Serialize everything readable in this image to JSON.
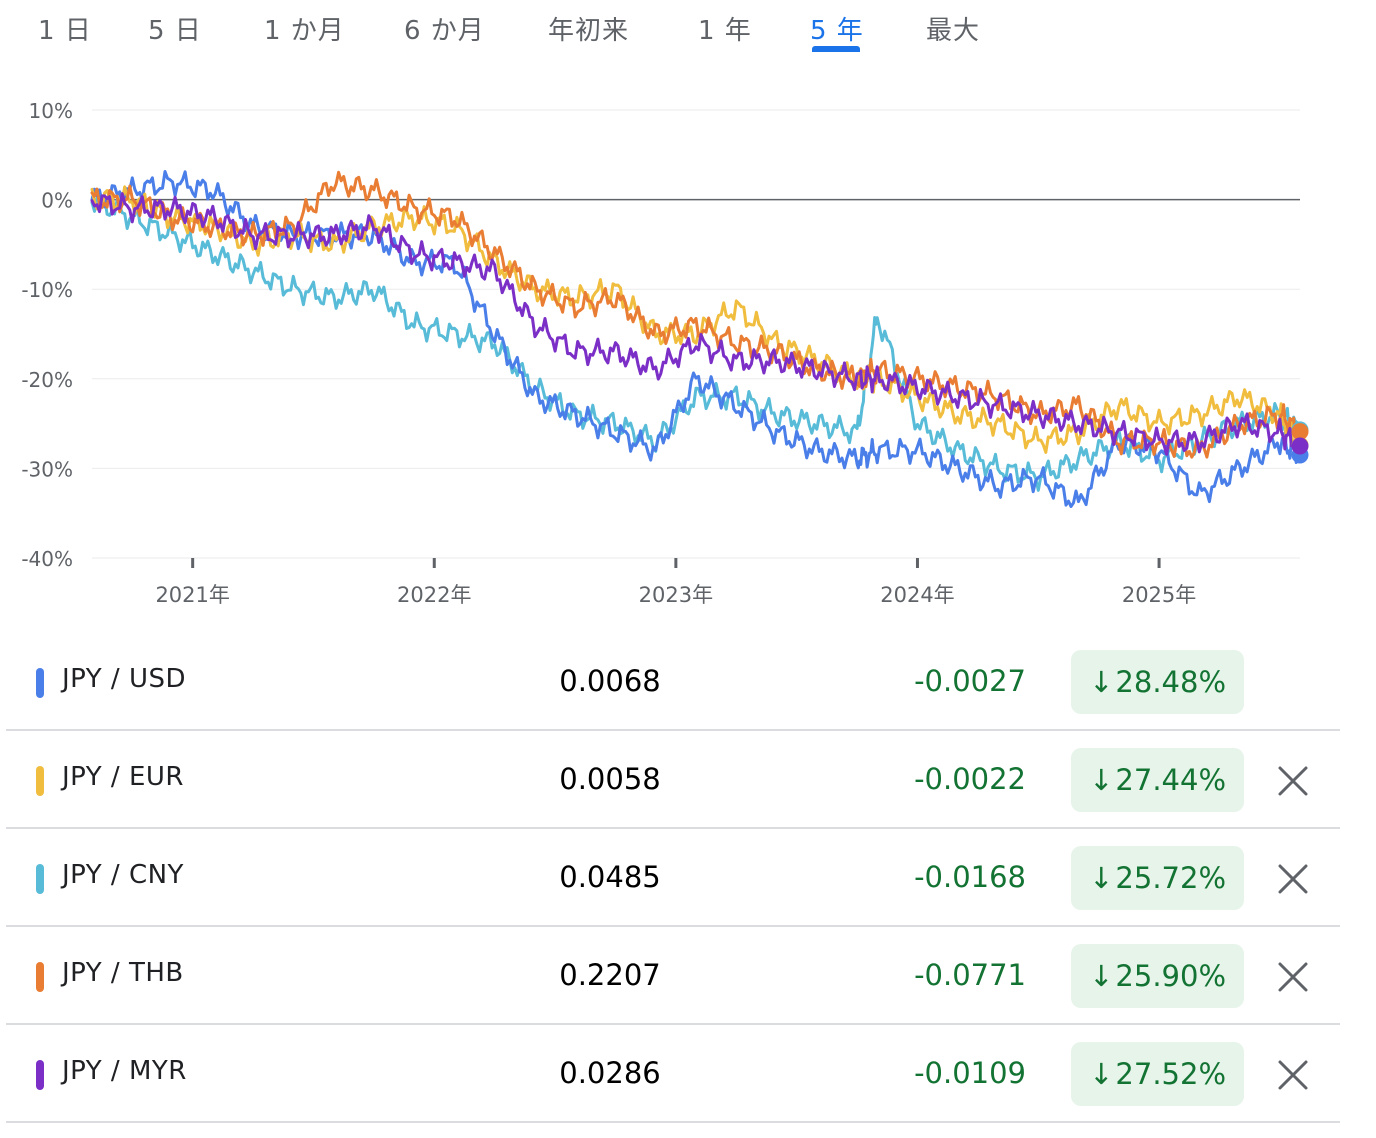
{
  "tabs": [
    {
      "label": "1 日",
      "active": false
    },
    {
      "label": "5 日",
      "active": false
    },
    {
      "label": "1 か月",
      "active": false
    },
    {
      "label": "6 か月",
      "active": false
    },
    {
      "label": "年初来",
      "active": false
    },
    {
      "label": "1 年",
      "active": false
    },
    {
      "label": "5 年",
      "active": true
    },
    {
      "label": "最大",
      "active": false
    }
  ],
  "colors": {
    "JPY / USD": "#4a7ee8",
    "JPY / EUR": "#f0bd3e",
    "JPY / CNY": "#58bcd8",
    "JPY / THB": "#e97d33",
    "JPY / MYR": "#7b2fc7",
    "positive_green": "#137333",
    "active_tab": "#1a73e8"
  },
  "rows": [
    {
      "pair": "JPY / USD",
      "price": "0.0068",
      "change": "-0.0027",
      "percent": "28.48%",
      "direction": "down",
      "removable": false
    },
    {
      "pair": "JPY / EUR",
      "price": "0.0058",
      "change": "-0.0022",
      "percent": "27.44%",
      "direction": "down",
      "removable": true
    },
    {
      "pair": "JPY / CNY",
      "price": "0.0485",
      "change": "-0.0168",
      "percent": "25.72%",
      "direction": "down",
      "removable": true
    },
    {
      "pair": "JPY / THB",
      "price": "0.2207",
      "change": "-0.0771",
      "percent": "25.90%",
      "direction": "down",
      "removable": true
    },
    {
      "pair": "JPY / MYR",
      "price": "0.0286",
      "change": "-0.0109",
      "percent": "27.52%",
      "direction": "down",
      "removable": true
    }
  ],
  "chart_data": {
    "type": "line",
    "title": "",
    "xlabel": "",
    "ylabel": "",
    "x_range": [
      "2020-08",
      "2025-08"
    ],
    "ylim": [
      -40,
      10
    ],
    "y_ticks": [
      "10%",
      "0%",
      "-10%",
      "-20%",
      "-30%",
      "-40%"
    ],
    "y_tick_values": [
      10,
      0,
      -10,
      -20,
      -30,
      -40
    ],
    "x_ticks": [
      "2021年",
      "2022年",
      "2023年",
      "2024年",
      "2025年"
    ],
    "baseline": 0,
    "grid": true,
    "legend": "table below chart",
    "x": [
      "2020-08",
      "2020-10",
      "2020-12",
      "2021-02",
      "2021-04",
      "2021-06",
      "2021-08",
      "2021-10",
      "2021-12",
      "2022-02",
      "2022-04",
      "2022-06",
      "2022-08",
      "2022-10",
      "2022-12",
      "2023-02",
      "2023-04",
      "2023-06",
      "2023-08",
      "2023-10",
      "2023-11",
      "2024-01",
      "2024-03",
      "2024-05",
      "2024-07",
      "2024-09",
      "2024-11",
      "2025-01",
      "2025-03",
      "2025-05",
      "2025-07",
      "2025-08"
    ],
    "series": [
      {
        "name": "JPY / USD",
        "values": [
          0,
          1,
          2,
          1,
          -3,
          -4,
          -4,
          -4,
          -7,
          -7,
          -15,
          -22,
          -24,
          -26,
          -28,
          -20,
          -23,
          -26,
          -28,
          -29,
          -28,
          -28,
          -30,
          -32,
          -31,
          -34,
          -27,
          -28,
          -33,
          -30,
          -27,
          -28.5
        ]
      },
      {
        "name": "JPY / EUR",
        "values": [
          0,
          0,
          -2,
          -3,
          -5,
          -4,
          -5,
          -3,
          -2,
          -3,
          -7,
          -10,
          -11,
          -10,
          -15,
          -15,
          -12,
          -16,
          -18,
          -20,
          -20,
          -22,
          -24,
          -25,
          -27,
          -26,
          -23,
          -25,
          -24,
          -22,
          -24,
          -27.4
        ]
      },
      {
        "name": "JPY / CNY",
        "values": [
          0,
          -2,
          -4,
          -6,
          -8,
          -10,
          -11,
          -10,
          -14,
          -15,
          -16,
          -21,
          -24,
          -25,
          -27,
          -22,
          -22,
          -24,
          -25,
          -26,
          -13,
          -25,
          -28,
          -30,
          -31,
          -29,
          -27,
          -29,
          -27,
          -25,
          -24,
          -25.7
        ]
      },
      {
        "name": "JPY / THB",
        "values": [
          0,
          0,
          -2,
          -3,
          -4,
          -3,
          2,
          1,
          -1,
          -2,
          -6,
          -10,
          -12,
          -11,
          -15,
          -14,
          -16,
          -17,
          -19,
          -20,
          -19,
          -20,
          -21,
          -22,
          -24,
          -23,
          -27,
          -27,
          -28,
          -25,
          -24,
          -25.9
        ]
      },
      {
        "name": "JPY / MYR",
        "values": [
          0,
          -1,
          -1,
          -2,
          -4,
          -4,
          -4,
          -3,
          -6,
          -7,
          -8,
          -14,
          -17,
          -17,
          -19,
          -16,
          -18,
          -18,
          -19,
          -20,
          -20,
          -21,
          -22,
          -23,
          -24,
          -25,
          -26,
          -27,
          -27,
          -25,
          -26,
          -27.5
        ]
      }
    ]
  }
}
